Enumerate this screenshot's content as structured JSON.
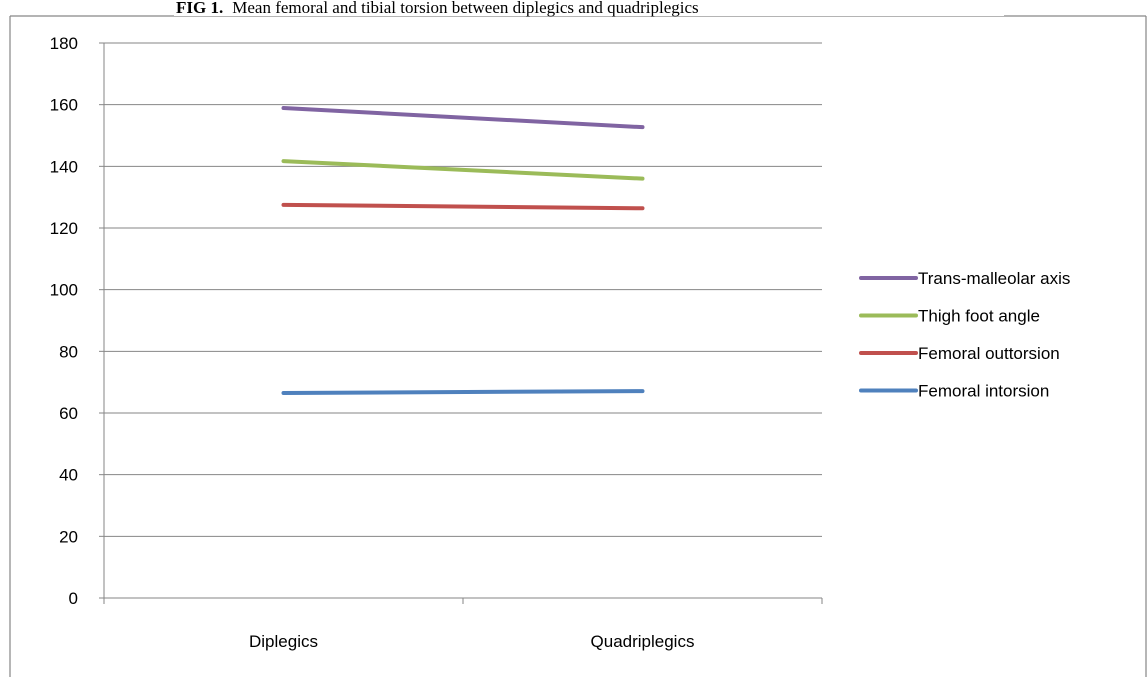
{
  "figure": {
    "caption_prefix": "FIG 1.",
    "caption_text": "Mean femoral and tibial torsion between diplegics and quadriplegics"
  },
  "chart_data": {
    "type": "line",
    "categories": [
      "Diplegics",
      "Quadriplegics"
    ],
    "series": [
      {
        "name": "Trans-malleolar axis",
        "values": [
          158.9,
          152.7
        ],
        "color": "#8064a2"
      },
      {
        "name": "Thigh foot angle",
        "values": [
          141.7,
          136.0
        ],
        "color": "#9bbb59"
      },
      {
        "name": "Femoral outtorsion",
        "values": [
          127.5,
          126.4
        ],
        "color": "#c0504d"
      },
      {
        "name": "Femoral intorsion",
        "values": [
          66.5,
          67.1
        ],
        "color": "#4f81bd"
      }
    ],
    "ylim": [
      0,
      180
    ],
    "yticks": [
      0,
      20,
      40,
      60,
      80,
      100,
      120,
      140,
      160,
      180
    ],
    "grid": true,
    "legend_position": "right",
    "xlabel": "",
    "ylabel": ""
  }
}
